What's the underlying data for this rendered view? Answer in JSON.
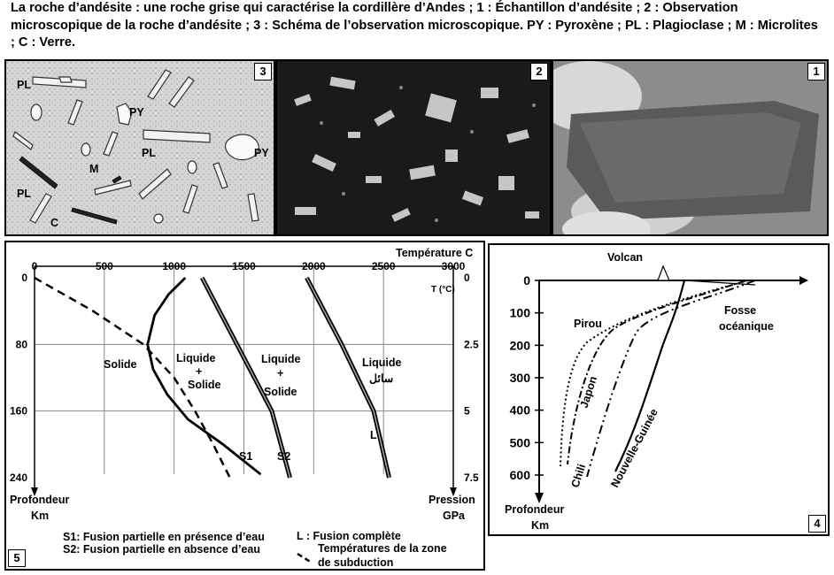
{
  "caption": "La roche d’andésite : une roche grise qui caractérise la cordillère d’Andes ; 1 : Échantillon d’andésite ; 2 : Observation microscopique de la roche d’andésite ; 3 : Schéma de l’observation microscopique. PY : Pyroxène ; PL : Plagioclase ; M : Microlites ; C : Verre.",
  "panel3": {
    "badge": "3",
    "labels": {
      "pl1": "PL",
      "py1": "PY",
      "pl2": "PL",
      "py2": "PY",
      "m": "M",
      "pl3": "PL",
      "c": "C"
    }
  },
  "panel2": {
    "badge": "2"
  },
  "panel1": {
    "badge": "1"
  },
  "panel5": {
    "badge": "5",
    "temp_title": "Température C",
    "temp_ticks": [
      "0",
      "500",
      "1000",
      "1500",
      "2000",
      "2500",
      "3000"
    ],
    "tc_unit": "T (°C)",
    "depth_ticks": [
      "0",
      "80",
      "160",
      "240"
    ],
    "pressure_ticks": [
      "0",
      "2.5",
      "5",
      "7.5"
    ],
    "depth_label_1": "Profondeur",
    "depth_label_2": "Km",
    "pressure_label_1": "Pression",
    "pressure_label_2": "GPa",
    "zone_solide": "Solide",
    "zone_ls1_a": "Liquide",
    "zone_ls1_b": "+",
    "zone_ls1_c": "Solide",
    "zone_ls2_a": "Liquide",
    "zone_ls2_b": "+",
    "zone_ls2_c": "Solide",
    "zone_liq": "Liquide",
    "zone_liq_ar": "سائل",
    "curve_s1": "S1",
    "curve_s2": "S2",
    "curve_l": "L",
    "legend_s1": "S1: Fusion partielle en présence d’eau",
    "legend_s2": "S2: Fusion partielle en absence d’eau",
    "legend_l": "L  : Fusion complète",
    "legend_dash_1": "Températures de la zone",
    "legend_dash_2": "de subduction"
  },
  "panel4": {
    "badge": "4",
    "volcan": "Volcan",
    "fosse_1": "Fosse",
    "fosse_2": "océanique",
    "depth_ticks": [
      "0",
      "100",
      "200",
      "300",
      "400",
      "500",
      "600"
    ],
    "depth_label_1": "Profondeur",
    "depth_label_2": "Km",
    "slabs": [
      "Pirou",
      "Japon",
      "Chili",
      "Nouvelle-Guinée"
    ]
  },
  "chart_data": [
    {
      "type": "line",
      "title": "",
      "xlabel": "Température C",
      "ylabel": "Profondeur Km",
      "y2label": "Pression GPa",
      "xlim": [
        0,
        3000
      ],
      "ylim": [
        0,
        240
      ],
      "x_ticks": [
        0,
        500,
        1000,
        1500,
        2000,
        2500,
        3000
      ],
      "y_ticks": [
        0,
        80,
        160,
        240
      ],
      "y2_ticks": [
        0,
        2.5,
        5,
        7.5
      ],
      "series": [
        {
          "name": "S1",
          "x": [
            1080,
            960,
            860,
            810,
            850,
            950,
            1100,
            1350,
            1620
          ],
          "y": [
            0,
            20,
            45,
            80,
            110,
            140,
            170,
            200,
            236
          ]
        },
        {
          "name": "S2",
          "x": [
            1200,
            1450,
            1700,
            1830
          ],
          "y": [
            0,
            80,
            160,
            240
          ]
        },
        {
          "name": "L",
          "x": [
            1950,
            2200,
            2430,
            2540
          ],
          "y": [
            0,
            80,
            160,
            240
          ]
        },
        {
          "name": "Températures de la zone de subduction",
          "x": [
            0,
            420,
            780,
            1000,
            1150,
            1280,
            1400
          ],
          "y": [
            0,
            40,
            80,
            120,
            160,
            200,
            240
          ]
        }
      ]
    },
    {
      "type": "line",
      "title": "",
      "ylabel": "Profondeur Km",
      "ylim": [
        0,
        600
      ],
      "y_ticks": [
        0,
        100,
        200,
        300,
        400,
        500,
        600
      ],
      "series": [
        {
          "name": "Pirou"
        },
        {
          "name": "Japon"
        },
        {
          "name": "Chili"
        },
        {
          "name": "Nouvelle-Guinée"
        }
      ]
    }
  ]
}
